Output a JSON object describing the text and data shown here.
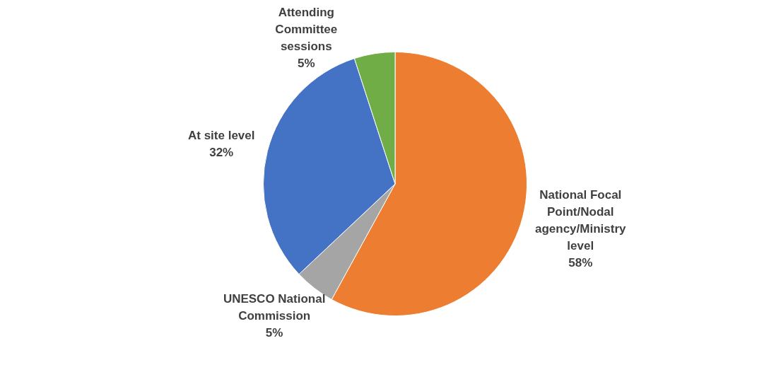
{
  "chart_data": {
    "type": "pie",
    "categories": [
      "National Focal Point/Nodal agency/Ministry level",
      "UNESCO National Commission",
      "At site level",
      "Attending Committee sessions"
    ],
    "values": [
      58,
      5,
      32,
      5
    ],
    "colors": [
      "#ed7d31",
      "#a5a5a5",
      "#4472c4",
      "#70ad47"
    ],
    "value_labels": [
      "58%",
      "5%",
      "32%",
      "5%"
    ],
    "legend": false
  }
}
